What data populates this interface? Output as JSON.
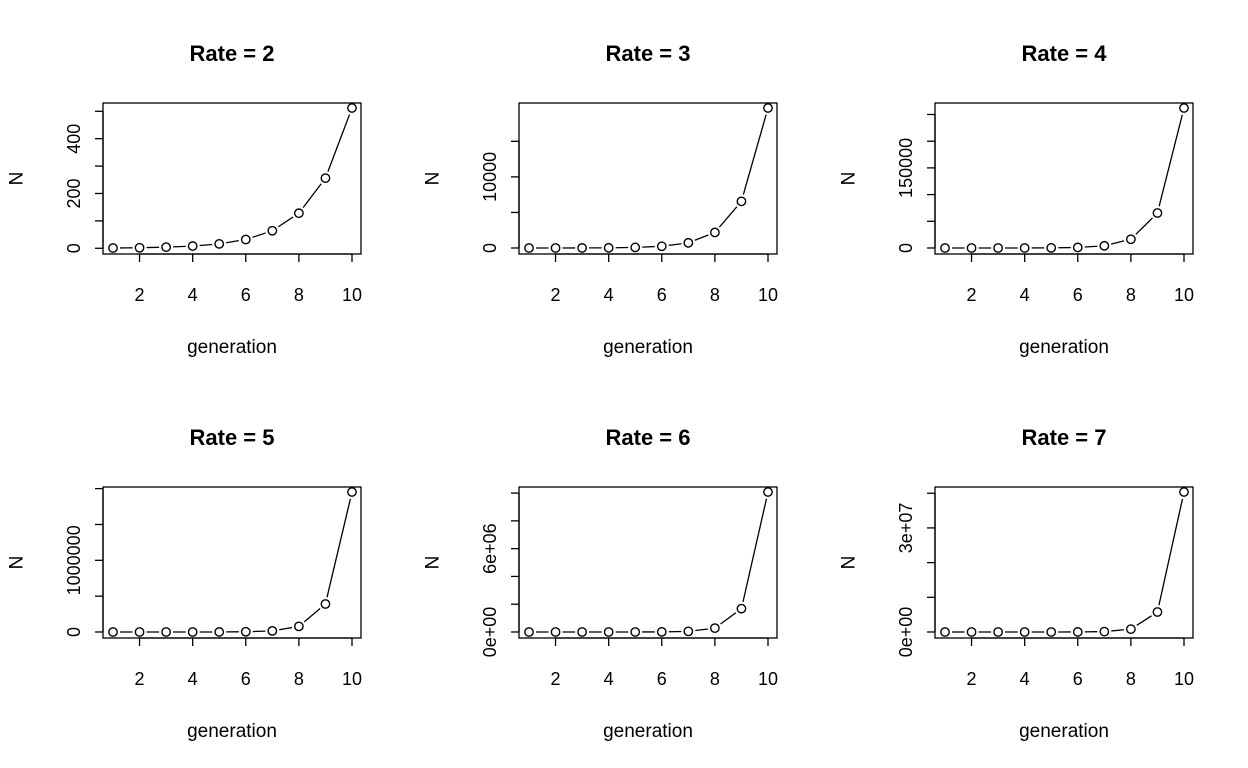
{
  "chart_data": [
    {
      "type": "line",
      "title": "Rate = 2",
      "xlabel": "generation",
      "ylabel": "N",
      "x": [
        1,
        2,
        3,
        4,
        5,
        6,
        7,
        8,
        9,
        10
      ],
      "series": [
        {
          "values": [
            1,
            2,
            4,
            8,
            16,
            32,
            64,
            128,
            256,
            512
          ]
        }
      ],
      "xlim": [
        1,
        10
      ],
      "ylim": [
        1,
        512
      ],
      "xticks": [
        2,
        4,
        6,
        8,
        10
      ],
      "xtick_labels": [
        "2",
        "4",
        "6",
        "8",
        "10"
      ],
      "yticks": [
        0,
        100,
        200,
        300,
        400,
        500
      ],
      "ytick_labels": [
        "0",
        "",
        "200",
        "",
        "400",
        ""
      ],
      "markers": "open-circle",
      "grid": false
    },
    {
      "type": "line",
      "title": "Rate = 3",
      "xlabel": "generation",
      "ylabel": "N",
      "x": [
        1,
        2,
        3,
        4,
        5,
        6,
        7,
        8,
        9,
        10
      ],
      "series": [
        {
          "values": [
            1,
            3,
            9,
            27,
            81,
            243,
            729,
            2187,
            6561,
            19683
          ]
        }
      ],
      "xlim": [
        1,
        10
      ],
      "ylim": [
        1,
        19683
      ],
      "xticks": [
        2,
        4,
        6,
        8,
        10
      ],
      "xtick_labels": [
        "2",
        "4",
        "6",
        "8",
        "10"
      ],
      "yticks": [
        0,
        5000,
        10000,
        15000
      ],
      "ytick_labels": [
        "0",
        "",
        "10000",
        ""
      ],
      "markers": "open-circle",
      "grid": false
    },
    {
      "type": "line",
      "title": "Rate = 4",
      "xlabel": "generation",
      "ylabel": "N",
      "x": [
        1,
        2,
        3,
        4,
        5,
        6,
        7,
        8,
        9,
        10
      ],
      "series": [
        {
          "values": [
            1,
            4,
            16,
            64,
            256,
            1024,
            4096,
            16384,
            65536,
            262144
          ]
        }
      ],
      "xlim": [
        1,
        10
      ],
      "ylim": [
        1,
        262144
      ],
      "xticks": [
        2,
        4,
        6,
        8,
        10
      ],
      "xtick_labels": [
        "2",
        "4",
        "6",
        "8",
        "10"
      ],
      "yticks": [
        0,
        50000,
        100000,
        150000,
        200000,
        250000
      ],
      "ytick_labels": [
        "0",
        "",
        "",
        "150000",
        "",
        ""
      ],
      "markers": "open-circle",
      "grid": false
    },
    {
      "type": "line",
      "title": "Rate = 5",
      "xlabel": "generation",
      "ylabel": "N",
      "x": [
        1,
        2,
        3,
        4,
        5,
        6,
        7,
        8,
        9,
        10
      ],
      "series": [
        {
          "values": [
            1,
            5,
            25,
            125,
            625,
            3125,
            15625,
            78125,
            390625,
            1953125
          ]
        }
      ],
      "xlim": [
        1,
        10
      ],
      "ylim": [
        1,
        1953125
      ],
      "xticks": [
        2,
        4,
        6,
        8,
        10
      ],
      "xtick_labels": [
        "2",
        "4",
        "6",
        "8",
        "10"
      ],
      "yticks": [
        0,
        500000,
        1000000,
        1500000,
        2000000
      ],
      "ytick_labels": [
        "0",
        "",
        "1000000",
        "",
        ""
      ],
      "markers": "open-circle",
      "grid": false
    },
    {
      "type": "line",
      "title": "Rate = 6",
      "xlabel": "generation",
      "ylabel": "N",
      "x": [
        1,
        2,
        3,
        4,
        5,
        6,
        7,
        8,
        9,
        10
      ],
      "series": [
        {
          "values": [
            1,
            6,
            36,
            216,
            1296,
            7776,
            46656,
            279936,
            1679616,
            10077696
          ]
        }
      ],
      "xlim": [
        1,
        10
      ],
      "ylim": [
        1,
        10077696
      ],
      "xticks": [
        2,
        4,
        6,
        8,
        10
      ],
      "xtick_labels": [
        "2",
        "4",
        "6",
        "8",
        "10"
      ],
      "yticks": [
        0,
        2000000,
        4000000,
        6000000,
        8000000,
        10000000
      ],
      "ytick_labels": [
        "0e+00",
        "",
        "",
        "6e+06",
        "",
        ""
      ],
      "markers": "open-circle",
      "grid": false
    },
    {
      "type": "line",
      "title": "Rate = 7",
      "xlabel": "generation",
      "ylabel": "N",
      "x": [
        1,
        2,
        3,
        4,
        5,
        6,
        7,
        8,
        9,
        10
      ],
      "series": [
        {
          "values": [
            1,
            7,
            49,
            343,
            2401,
            16807,
            117649,
            823543,
            5764801,
            40353607
          ]
        }
      ],
      "xlim": [
        1,
        10
      ],
      "ylim": [
        1,
        40353607
      ],
      "xticks": [
        2,
        4,
        6,
        8,
        10
      ],
      "xtick_labels": [
        "2",
        "4",
        "6",
        "8",
        "10"
      ],
      "yticks": [
        0,
        10000000,
        20000000,
        30000000,
        40000000
      ],
      "ytick_labels": [
        "0e+00",
        "",
        "",
        "3e+07",
        ""
      ],
      "markers": "open-circle",
      "grid": false
    }
  ]
}
